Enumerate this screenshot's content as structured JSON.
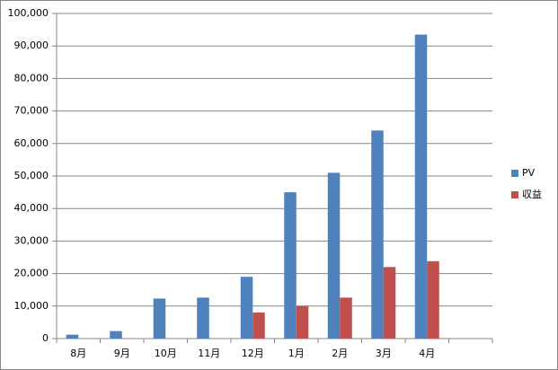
{
  "chart_data": {
    "type": "bar",
    "categories": [
      "8月",
      "9月",
      "10月",
      "11月",
      "12月",
      "1月",
      "2月",
      "3月",
      "4月",
      null
    ],
    "series": [
      {
        "name": "PV",
        "color": "#4f81bd",
        "values": [
          1200,
          2300,
          12300,
          12600,
          19000,
          45000,
          51000,
          64000,
          93500,
          null
        ]
      },
      {
        "name": "収益",
        "color": "#c0504d",
        "values": [
          0,
          0,
          0,
          0,
          8000,
          10000,
          12600,
          22000,
          23800,
          null
        ]
      }
    ],
    "ylim": [
      0,
      100000
    ],
    "yticks": [
      0,
      {
        "value": 10000,
        "label": "10,000"
      },
      {
        "value": 20000,
        "label": "20,000"
      },
      {
        "value": 30000,
        "label": "30,000"
      },
      {
        "value": 40000,
        "label": "40,000"
      },
      {
        "value": 50000,
        "label": "50,000"
      },
      {
        "value": 60000,
        "label": "60,000"
      },
      {
        "value": 70000,
        "label": "70,000"
      },
      {
        "value": 80000,
        "label": "80,000"
      },
      {
        "value": 90000,
        "label": "90,000"
      },
      {
        "value": 100000,
        "label": "100,000"
      }
    ],
    "grid": true,
    "legend": "right"
  }
}
